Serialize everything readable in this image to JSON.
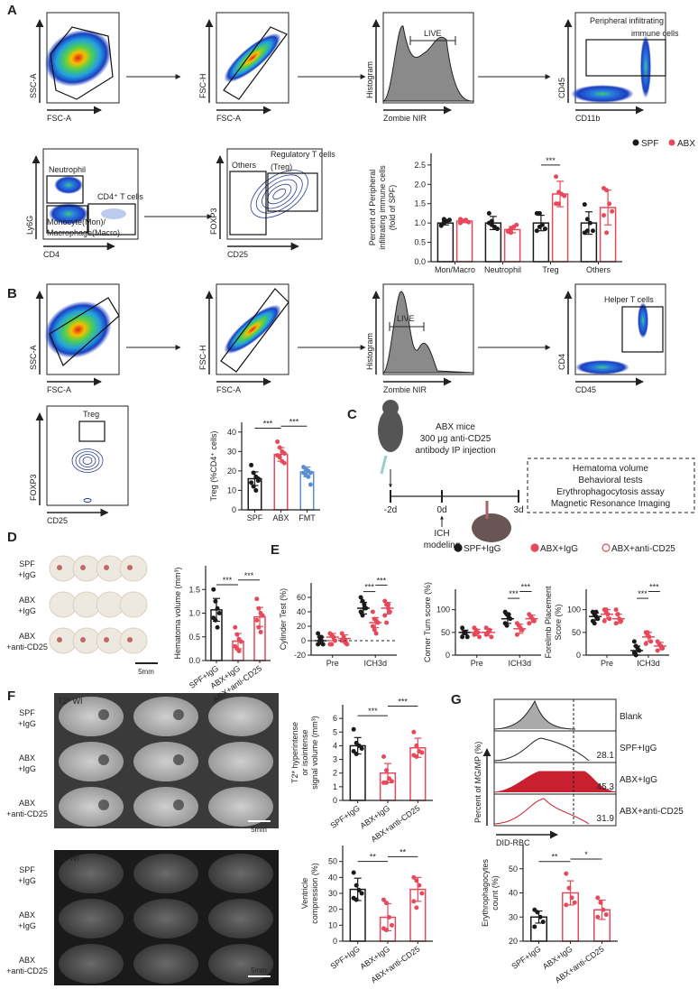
{
  "panel_letters": {
    "A": "A",
    "B": "B",
    "C": "C",
    "D": "D",
    "E": "E",
    "F": "F",
    "G": "G"
  },
  "colors": {
    "spf": "#1a1a1a",
    "abx": "#e8495a",
    "fmt": "#5b8fcf",
    "hist_fill": "#8a8a8a",
    "abx_hist": "#c8202f"
  },
  "flow": {
    "a1": {
      "ylabel": "SSC-A",
      "xlabel": "FSC-A"
    },
    "a2": {
      "ylabel": "FSC-H",
      "xlabel": "FSC-A"
    },
    "a3": {
      "ylabel": "Histogram",
      "xlabel": "Zombie NIR",
      "gate": "LIVE"
    },
    "a4": {
      "ylabel": "CD45",
      "xlabel": "CD11b",
      "gate": "Peripheral infiltrating",
      "gate2": "immune cells"
    },
    "a5": {
      "ylabel": "Ly6G",
      "xlabel": "CD4",
      "gate": "Neutrophil",
      "gate2": "CD4⁺ T cells",
      "gate3": "Monocyte(Mon)/",
      "gate4": "Macrophage(Macro)"
    },
    "a6": {
      "ylabel": "FOXP3",
      "xlabel": "CD25",
      "gate": "Regulatory T cells",
      "gate2": "(Treg)",
      "gate3": "Others"
    },
    "b1": {
      "ylabel": "SSC-A",
      "xlabel": "FSC-A"
    },
    "b2": {
      "ylabel": "FSC-H",
      "xlabel": "FSC-A"
    },
    "b3": {
      "ylabel": "Histogram",
      "xlabel": "Zombie NIR",
      "gate": "LIVE"
    },
    "b4": {
      "ylabel": "CD4",
      "xlabel": "CD45",
      "gate": "Helper T cells"
    },
    "b5": {
      "ylabel": "FOXP3",
      "xlabel": "CD25",
      "gate": "Treg"
    }
  },
  "schematic": {
    "lines": [
      "ABX mice",
      "300 μg anti-CD25",
      "antibody IP injection"
    ],
    "timepoints": [
      "-2d",
      "0d",
      "3d"
    ],
    "ich": [
      "ICH",
      "modeling"
    ],
    "outcomes": [
      "Hematoma volume",
      "Behavioral tests",
      "Erythrophagocytosis assay",
      "Magnetic Resonance Imaging"
    ]
  },
  "panelD": {
    "rows": [
      [
        "SPF",
        "+IgG"
      ],
      [
        "ABX",
        "+IgG"
      ],
      [
        "ABX",
        "+anti-CD25"
      ]
    ],
    "scale": "5mm"
  },
  "panelE": {
    "legend": [
      "SPF+IgG",
      "ABX+IgG",
      "ABX+anti-CD25"
    ]
  },
  "panelF": {
    "t2star": "T2* WI",
    "t2": "T2 WI",
    "rows": [
      [
        "SPF",
        "+IgG"
      ],
      [
        "ABX",
        "+IgG"
      ],
      [
        "ABX",
        "+anti-CD25"
      ]
    ],
    "scale": "5mm"
  },
  "panelG": {
    "rows": [
      "Blank",
      "SPF+IgG",
      "ABX+IgG",
      "ABX+anti-CD25"
    ],
    "values": [
      "",
      "28.1",
      "45.3",
      "31.9"
    ],
    "ylabel": "Percent of MG/MP (%)",
    "xlabel": "DID-RBC"
  },
  "chart_data": [
    {
      "id": "A",
      "type": "bar",
      "ylabel": [
        "Percent of Peripheral",
        "infiltrating immune cells",
        "(fold of SPF)"
      ],
      "categories": [
        "Mon/Macro",
        "Neutrophil",
        "Treg",
        "Others"
      ],
      "ylim": [
        0,
        2.8
      ],
      "yticks": [
        0.0,
        0.5,
        1.0,
        1.5,
        2.0,
        2.5
      ],
      "tickfmt": 1,
      "legend": {
        "placement": "top-right",
        "entries": [
          "SPF",
          "ABX"
        ]
      },
      "series": [
        {
          "name": "SPF",
          "color": "#1a1a1a",
          "values": [
            1.0,
            1.0,
            1.0,
            1.0
          ],
          "sd": [
            0.05,
            0.17,
            0.2,
            0.29
          ],
          "points": [
            [
              0.95,
              1.0,
              1.05,
              1.08,
              0.93,
              1.1
            ],
            [
              1.25,
              1.05,
              0.9,
              0.85,
              1.0,
              0.95
            ],
            [
              1.25,
              1.25,
              0.95,
              0.85,
              0.8,
              0.9
            ],
            [
              1.48,
              1.1,
              1.0,
              0.8,
              0.75,
              0.8
            ]
          ]
        },
        {
          "name": "ABX",
          "color": "#e8495a",
          "values": [
            1.05,
            0.83,
            1.75,
            1.4
          ],
          "sd": [
            0.04,
            0.08,
            0.33,
            0.45
          ],
          "points": [
            [
              1.0,
              1.05,
              1.08,
              1.02,
              1.1,
              1.06
            ],
            [
              0.78,
              0.85,
              0.9,
              0.95,
              0.8,
              0.75
            ],
            [
              2.2,
              1.8,
              1.75,
              1.7,
              1.5,
              1.5
            ],
            [
              1.9,
              1.85,
              1.5,
              1.3,
              1.2,
              0.75
            ]
          ]
        }
      ],
      "sig": [
        {
          "from": [
            2,
            0
          ],
          "to": [
            2,
            1
          ],
          "y": 2.5,
          "label": "***"
        }
      ]
    },
    {
      "id": "B",
      "type": "bar",
      "ylabel": [
        "Treg (%CD4⁺ cells)"
      ],
      "categories": [
        "SPF",
        "ABX",
        "FMT"
      ],
      "ylim": [
        0,
        45
      ],
      "yticks": [
        0,
        10,
        20,
        30,
        40
      ],
      "colors": [
        "#1a1a1a",
        "#e8495a",
        "#5b8fcf"
      ],
      "series": [
        {
          "values": [
            16,
            28.5,
            19.5
          ],
          "sd": [
            3.5,
            3.5,
            2.5
          ],
          "points": [
            [
              23,
              19,
              17,
              16,
              14,
              12,
              10,
              15
            ],
            [
              35,
              32,
              30,
              29,
              28,
              27,
              25,
              24
            ],
            [
              22,
              21,
              20,
              19,
              19,
              18,
              17,
              13
            ]
          ]
        }
      ],
      "sig": [
        {
          "from": [
            0,
            0
          ],
          "to": [
            1,
            0
          ],
          "y": 42,
          "label": "***"
        },
        {
          "from": [
            1,
            0
          ],
          "to": [
            2,
            0
          ],
          "y": 43,
          "label": "***"
        }
      ]
    },
    {
      "id": "D",
      "type": "bar",
      "ylabel": [
        "Hematoma volume (mm³)"
      ],
      "categories": [
        "SPF+IgG",
        "ABX+IgG",
        "ABX+anti-CD25"
      ],
      "rotate": true,
      "ylim": [
        0,
        2.0
      ],
      "yticks": [
        0.0,
        0.5,
        1.0,
        1.5
      ],
      "tickfmt": 1,
      "colors": [
        "#1a1a1a",
        "#e8495a",
        "#e8495a"
      ],
      "series": [
        {
          "values": [
            1.07,
            0.41,
            0.92
          ],
          "sd": [
            0.24,
            0.16,
            0.2
          ],
          "points": [
            [
              1.5,
              1.25,
              1.1,
              1.0,
              0.9,
              0.85,
              0.7
            ],
            [
              0.7,
              0.55,
              0.45,
              0.4,
              0.3,
              0.25,
              0.2
            ],
            [
              1.3,
              1.1,
              1.0,
              0.95,
              0.85,
              0.7,
              0.6
            ]
          ]
        }
      ],
      "sig": [
        {
          "from": [
            0,
            0
          ],
          "to": [
            1,
            0
          ],
          "y": 1.6,
          "label": "***"
        },
        {
          "from": [
            1,
            0
          ],
          "to": [
            2,
            0
          ],
          "y": 1.7,
          "label": "***"
        }
      ]
    },
    {
      "id": "E1",
      "type": "scatter",
      "ylabel": [
        "Cylinder Test (%)"
      ],
      "categories": [
        "Pre",
        "ICH3d"
      ],
      "ylim": [
        -20,
        80
      ],
      "yticks": [
        -20,
        0,
        20,
        40,
        60
      ],
      "zero_line": true,
      "series": [
        {
          "name": "SPF+IgG",
          "color": "#1a1a1a",
          "marker": "filled",
          "values": [
            0,
            45
          ],
          "sd": [
            5,
            8
          ],
          "points": [
            [
              10,
              5,
              0,
              -5,
              -5,
              0,
              5
            ],
            [
              60,
              55,
              50,
              45,
              40,
              35,
              45
            ]
          ]
        },
        {
          "name": "ABX+IgG",
          "color": "#e8495a",
          "marker": "filled",
          "values": [
            5,
            25
          ],
          "sd": [
            5,
            7
          ],
          "points": [
            [
              10,
              8,
              5,
              0,
              -5,
              -5,
              5
            ],
            [
              40,
              30,
              28,
              25,
              20,
              15,
              10
            ]
          ]
        },
        {
          "name": "ABX+anti-CD25",
          "color": "#e8495a",
          "marker": "open",
          "values": [
            3,
            45
          ],
          "sd": [
            5,
            8
          ],
          "points": [
            [
              10,
              5,
              0,
              -5,
              0,
              3,
              -3
            ],
            [
              55,
              50,
              45,
              40,
              35,
              25,
              50
            ]
          ]
        }
      ],
      "sig": [
        {
          "from": [
            1,
            0
          ],
          "to": [
            1,
            1
          ],
          "y": 68,
          "label": "***"
        },
        {
          "from": [
            1,
            1
          ],
          "to": [
            1,
            2
          ],
          "y": 77,
          "label": "***"
        }
      ]
    },
    {
      "id": "E2",
      "type": "scatter",
      "ylabel": [
        "Corner Turn score (%)"
      ],
      "categories": [
        "Pre",
        "ICH3d"
      ],
      "ylim": [
        0,
        145
      ],
      "yticks": [
        0,
        50,
        100
      ],
      "series": [
        {
          "name": "SPF+IgG",
          "color": "#1a1a1a",
          "marker": "filled",
          "values": [
            50,
            80
          ],
          "sd": [
            5,
            10
          ],
          "points": [
            [
              60,
              50,
              50,
              40,
              40
            ],
            [
              95,
              90,
              85,
              80,
              70,
              65,
              90
            ]
          ]
        },
        {
          "name": "ABX+IgG",
          "color": "#e8495a",
          "marker": "filled",
          "values": [
            50,
            58
          ],
          "sd": [
            7,
            10
          ],
          "points": [
            [
              60,
              55,
              50,
              40,
              45
            ],
            [
              70,
              65,
              60,
              55,
              45
            ]
          ]
        },
        {
          "name": "ABX+anti-CD25",
          "color": "#e8495a",
          "marker": "open",
          "values": [
            50,
            80
          ],
          "sd": [
            7,
            8
          ],
          "points": [
            [
              60,
              50,
              55,
              40,
              45
            ],
            [
              90,
              85,
              80,
              75,
              70
            ]
          ]
        }
      ],
      "sig": [
        {
          "from": [
            1,
            0
          ],
          "to": [
            1,
            1
          ],
          "y": 125,
          "label": "***"
        },
        {
          "from": [
            1,
            1
          ],
          "to": [
            1,
            2
          ],
          "y": 140,
          "label": "***"
        }
      ]
    },
    {
      "id": "E3",
      "type": "scatter",
      "ylabel": [
        "Forelimb Placement",
        "Score (%)"
      ],
      "categories": [
        "Pre",
        "ICH3d"
      ],
      "ylim": [
        0,
        145
      ],
      "yticks": [
        0,
        50,
        100
      ],
      "series": [
        {
          "name": "SPF+IgG",
          "color": "#1a1a1a",
          "marker": "filled",
          "values": [
            85,
            10
          ],
          "sd": [
            8,
            10
          ],
          "points": [
            [
              95,
              90,
              85,
              80,
              75,
              70,
              95
            ],
            [
              30,
              20,
              15,
              10,
              5,
              0
            ]
          ]
        },
        {
          "name": "ABX+IgG",
          "color": "#e8495a",
          "marker": "filled",
          "values": [
            90,
            40
          ],
          "sd": [
            10,
            10
          ],
          "points": [
            [
              100,
              95,
              90,
              80,
              75,
              100
            ],
            [
              50,
              45,
              40,
              30,
              25,
              50
            ]
          ]
        },
        {
          "name": "ABX+anti-CD25",
          "color": "#e8495a",
          "marker": "open",
          "values": [
            80,
            20
          ],
          "sd": [
            10,
            8
          ],
          "points": [
            [
              100,
              90,
              80,
              75,
              70,
              90
            ],
            [
              30,
              25,
              20,
              15,
              10
            ]
          ]
        }
      ],
      "sig": [
        {
          "from": [
            1,
            0
          ],
          "to": [
            1,
            1
          ],
          "y": 125,
          "label": "***"
        },
        {
          "from": [
            1,
            1
          ],
          "to": [
            1,
            2
          ],
          "y": 140,
          "label": "***"
        }
      ]
    },
    {
      "id": "F1",
      "type": "bar",
      "ylabel": [
        "T2* hyperintense",
        "or isointense",
        "signal volume (mm³)"
      ],
      "categories": [
        "SPF+IgG",
        "ABX+IgG",
        "ABX+anti-CD25"
      ],
      "rotate": true,
      "ylim": [
        0,
        7
      ],
      "yticks": [
        0,
        1,
        2,
        3,
        4,
        5,
        6
      ],
      "colors": [
        "#1a1a1a",
        "#e8495a",
        "#e8495a"
      ],
      "series": [
        {
          "values": [
            4.0,
            2.0,
            3.85
          ],
          "sd": [
            0.6,
            0.7,
            0.7
          ],
          "points": [
            [
              5.2,
              4.2,
              4.0,
              3.8,
              3.6,
              3.4
            ],
            [
              3.2,
              2.2,
              1.6,
              1.4,
              1.3,
              1.3
            ],
            [
              5.0,
              4.0,
              3.6,
              3.5,
              3.3,
              3.2
            ]
          ]
        }
      ],
      "sig": [
        {
          "from": [
            0,
            0
          ],
          "to": [
            1,
            0
          ],
          "y": 6.2,
          "label": "***"
        },
        {
          "from": [
            1,
            0
          ],
          "to": [
            2,
            0
          ],
          "y": 6.9,
          "label": "***"
        }
      ]
    },
    {
      "id": "F2",
      "type": "bar",
      "ylabel": [
        "Ventricle",
        "compression (%)"
      ],
      "categories": [
        "SPF+IgG",
        "ABX+IgG",
        "ABX+anti-CD25"
      ],
      "rotate": true,
      "ylim": [
        0,
        60
      ],
      "yticks": [
        0,
        10,
        20,
        30,
        40,
        50
      ],
      "colors": [
        "#1a1a1a",
        "#e8495a",
        "#e8495a"
      ],
      "series": [
        {
          "values": [
            32.5,
            15,
            32.5
          ],
          "sd": [
            7,
            8.5,
            7.5
          ],
          "points": [
            [
              43,
              35,
              32,
              30,
              27,
              26
            ],
            [
              26,
              24,
              15,
              10,
              8,
              7
            ],
            [
              40,
              38,
              35,
              30,
              25,
              21
            ]
          ]
        }
      ],
      "sig": [
        {
          "from": [
            0,
            0
          ],
          "to": [
            1,
            0
          ],
          "y": 50,
          "label": "**"
        },
        {
          "from": [
            1,
            0
          ],
          "to": [
            2,
            0
          ],
          "y": 53,
          "label": "**"
        }
      ]
    },
    {
      "id": "G",
      "type": "bar",
      "ylabel": [
        "Erythrophagocytes",
        "count (%)"
      ],
      "categories": [
        "SPF+IgG",
        "ABX+IgG",
        "ABX+anti-CD25"
      ],
      "rotate": true,
      "ylim": [
        20,
        60
      ],
      "yticks": [
        20,
        30,
        40,
        50
      ],
      "colors": [
        "#1a1a1a",
        "#e8495a",
        "#e8495a"
      ],
      "series": [
        {
          "values": [
            30,
            40,
            33
          ],
          "sd": [
            2.5,
            5,
            4
          ],
          "points": [
            [
              33,
              32,
              30,
              28,
              26
            ],
            [
              48,
              42,
              38,
              36,
              35
            ],
            [
              38,
              36,
              33,
              31,
              30
            ]
          ]
        }
      ],
      "sig": [
        {
          "from": [
            0,
            0
          ],
          "to": [
            1,
            0
          ],
          "y": 53,
          "label": "**"
        },
        {
          "from": [
            1,
            0
          ],
          "to": [
            2,
            0
          ],
          "y": 54,
          "label": "*"
        }
      ]
    }
  ]
}
